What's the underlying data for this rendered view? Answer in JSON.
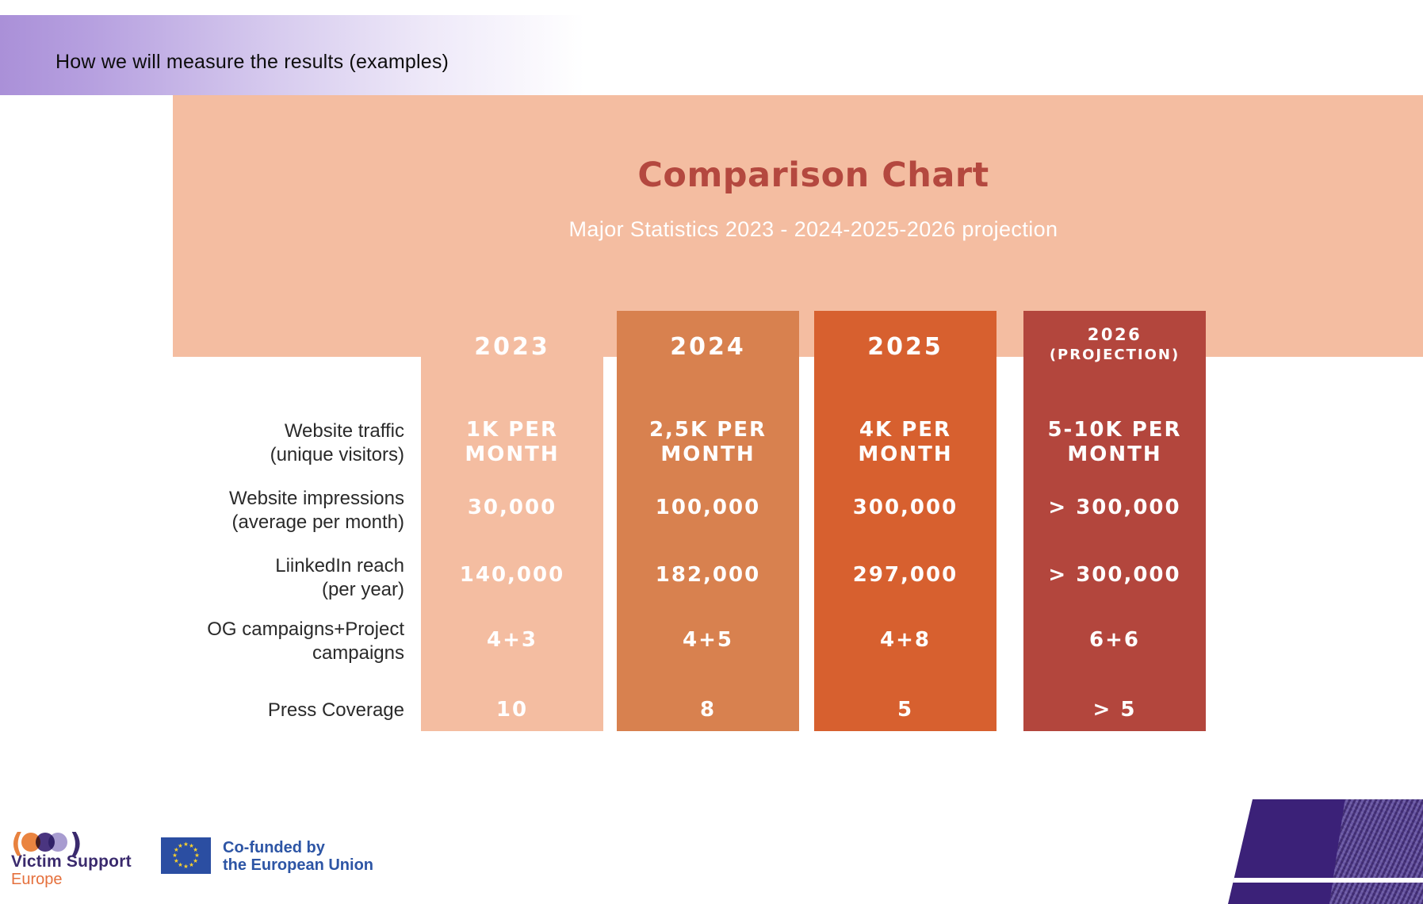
{
  "kicker": "How we will measure the results (examples)",
  "header": {
    "title": "Comparison Chart",
    "subtitle": "Major Statistics 2023 - 2024-2025-2026 projection"
  },
  "columns": [
    {
      "year": "2023",
      "note": ""
    },
    {
      "year": "2024",
      "note": ""
    },
    {
      "year": "2025",
      "note": ""
    },
    {
      "year": "2026",
      "note": "(PROJECTION)"
    }
  ],
  "rows": [
    {
      "label": [
        "Website traffic",
        "(unique visitors)"
      ],
      "values": [
        [
          "1K PER",
          "MONTH"
        ],
        [
          "2,5K PER",
          "MONTH"
        ],
        [
          "4K PER",
          "MONTH"
        ],
        [
          "5-10K PER",
          "MONTH"
        ]
      ]
    },
    {
      "label": [
        "Website impressions",
        "(average per month)"
      ],
      "values": [
        [
          "30,000"
        ],
        [
          "100,000"
        ],
        [
          "300,000"
        ],
        [
          "> 300,000"
        ]
      ]
    },
    {
      "label": [
        "LiinkedIn reach",
        "(per year)"
      ],
      "values": [
        [
          "140,000"
        ],
        [
          "182,000"
        ],
        [
          "297,000"
        ],
        [
          "> 300,000"
        ]
      ]
    },
    {
      "label": [
        "OG campaigns+Project",
        "campaigns"
      ],
      "values": [
        [
          "4+3"
        ],
        [
          "4+5"
        ],
        [
          "4+8"
        ],
        [
          "6+6"
        ]
      ]
    },
    {
      "label": [
        "Press Coverage"
      ],
      "values": [
        [
          "10"
        ],
        [
          "8"
        ],
        [
          "5"
        ],
        [
          "> 5"
        ]
      ]
    }
  ],
  "footer": {
    "vse": {
      "name": "Victim Support",
      "region": "Europe"
    },
    "eu": {
      "line1": "Co-funded by",
      "line2": "the European Union"
    }
  },
  "colors": {
    "header_peach": "#f4bda1",
    "col_2023": "#f4bda1",
    "col_2024": "#d8814f",
    "col_2025": "#d7602f",
    "col_2026": "#b3463d",
    "title_red": "#b4483f",
    "kicker_purple": "#aa90d8",
    "corner_purple": "#3b2178",
    "eu_blue": "#2b4ea2",
    "star_gold": "#f8d12e",
    "vse_purple": "#3a2a6d",
    "vse_orange": "#e5703c"
  }
}
